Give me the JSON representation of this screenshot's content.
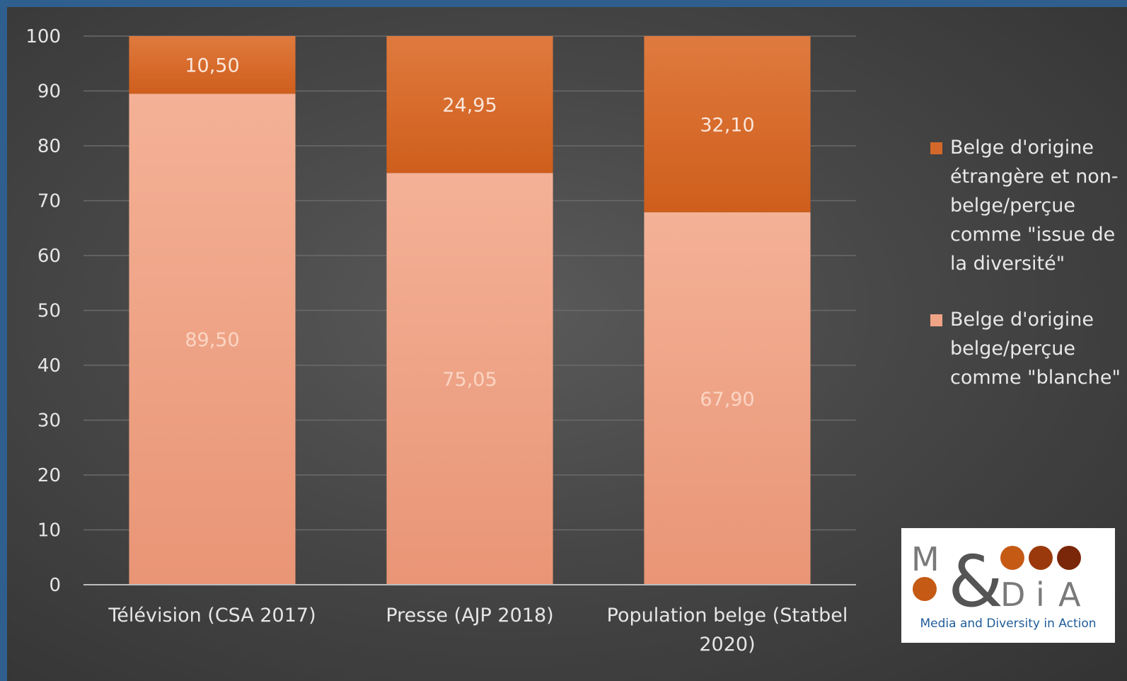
{
  "chart_data": {
    "type": "bar",
    "stacked": true,
    "categories": [
      "Télévision (CSA 2017)",
      "Presse (AJP 2018)",
      "Population belge (Statbel 2020)"
    ],
    "series": [
      {
        "name": "Belge d'origine belge/perçue comme \"blanche\"",
        "values": [
          89.5,
          75.05,
          67.9
        ],
        "labels": [
          "89,50",
          "75,05",
          "67,90"
        ],
        "color": "#f0a486"
      },
      {
        "name": "Belge d'origine étrangère et non-belge/perçue comme \"issue de la diversité\"",
        "values": [
          10.5,
          24.95,
          32.1
        ],
        "labels": [
          "10,50",
          "24,95",
          "32,10"
        ],
        "color": "#d4682b"
      }
    ],
    "ylim": [
      0,
      100
    ],
    "yticks": [
      "0",
      "10",
      "20",
      "30",
      "40",
      "50",
      "60",
      "70",
      "80",
      "90",
      "100"
    ],
    "grid": true,
    "legend_position": "right"
  },
  "legend": {
    "items": [
      {
        "label": "Belge d'origine étrangère et non-belge/perçue comme \"issue de la diversité\"",
        "color": "#d4682b"
      },
      {
        "label": "Belge d'origine belge/perçue comme \"blanche\"",
        "color": "#f0a486"
      }
    ]
  },
  "logo": {
    "letters": [
      "M",
      "&",
      "D",
      "i",
      "A"
    ],
    "tagline": "Media and Diversity in Action",
    "dot_colors": [
      "#c55a15",
      "#c55a15",
      "#9a3a0c",
      "#7a2608",
      "#c55a15"
    ]
  }
}
